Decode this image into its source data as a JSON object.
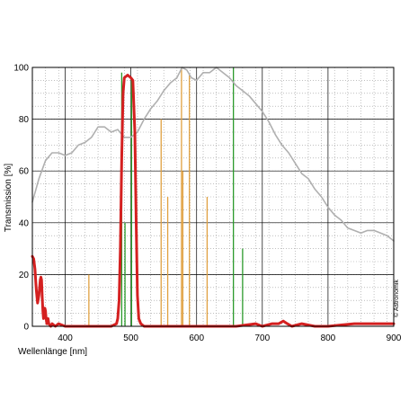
{
  "chart_data": {
    "type": "line",
    "xlabel": "Wellenlänge [nm]",
    "ylabel": "Transmission [%]",
    "xlim": [
      350,
      900
    ],
    "ylim": [
      0,
      100
    ],
    "x_ticks": [
      400,
      500,
      600,
      700,
      800,
      900
    ],
    "y_ticks": [
      0,
      20,
      40,
      60,
      80,
      100
    ],
    "grid": true,
    "watermark": "© Astronomik",
    "colors": {
      "filter": "#d42020",
      "sensor": "#b0b0b0",
      "orange_lines": "#e0a040",
      "green_lines": "#2a9a2a",
      "grid_major": "#000000",
      "grid_minor": "#9a9a9a"
    },
    "series": [
      {
        "role": "filter-transmission",
        "color": "#d42020",
        "points": [
          [
            350,
            27
          ],
          [
            352,
            26
          ],
          [
            354,
            22
          ],
          [
            356,
            14
          ],
          [
            358,
            9
          ],
          [
            360,
            12
          ],
          [
            362,
            18
          ],
          [
            363,
            19
          ],
          [
            364,
            18
          ],
          [
            365,
            11
          ],
          [
            366,
            6
          ],
          [
            367,
            3
          ],
          [
            368,
            6
          ],
          [
            369,
            7
          ],
          [
            370,
            6
          ],
          [
            371,
            3
          ],
          [
            372,
            1
          ],
          [
            373,
            2
          ],
          [
            374,
            3
          ],
          [
            375,
            1
          ],
          [
            378,
            0
          ],
          [
            380,
            1
          ],
          [
            385,
            0
          ],
          [
            390,
            1
          ],
          [
            400,
            0
          ],
          [
            420,
            0
          ],
          [
            450,
            0
          ],
          [
            470,
            0
          ],
          [
            478,
            1
          ],
          [
            480,
            3
          ],
          [
            482,
            10
          ],
          [
            484,
            30
          ],
          [
            486,
            65
          ],
          [
            488,
            90
          ],
          [
            490,
            96
          ],
          [
            495,
            97
          ],
          [
            500,
            96
          ],
          [
            503,
            95
          ],
          [
            506,
            75
          ],
          [
            508,
            40
          ],
          [
            510,
            12
          ],
          [
            512,
            3
          ],
          [
            515,
            1
          ],
          [
            520,
            0
          ],
          [
            560,
            0
          ],
          [
            600,
            0
          ],
          [
            640,
            0
          ],
          [
            660,
            0
          ],
          [
            690,
            1
          ],
          [
            700,
            0
          ],
          [
            715,
            1
          ],
          [
            725,
            1
          ],
          [
            732,
            2
          ],
          [
            738,
            1
          ],
          [
            745,
            0
          ],
          [
            760,
            1
          ],
          [
            780,
            0
          ],
          [
            800,
            0
          ],
          [
            840,
            1
          ],
          [
            870,
            1
          ],
          [
            900,
            1
          ]
        ]
      },
      {
        "role": "sensor-response",
        "color": "#b0b0b0",
        "points": [
          [
            350,
            48
          ],
          [
            360,
            57
          ],
          [
            370,
            64
          ],
          [
            380,
            67
          ],
          [
            390,
            67
          ],
          [
            400,
            66
          ],
          [
            410,
            67
          ],
          [
            420,
            70
          ],
          [
            430,
            71
          ],
          [
            440,
            73
          ],
          [
            450,
            77
          ],
          [
            460,
            77
          ],
          [
            470,
            75
          ],
          [
            480,
            76
          ],
          [
            490,
            73
          ],
          [
            500,
            73
          ],
          [
            510,
            75
          ],
          [
            520,
            80
          ],
          [
            530,
            84
          ],
          [
            540,
            87
          ],
          [
            550,
            91
          ],
          [
            560,
            94
          ],
          [
            570,
            96
          ],
          [
            578,
            100
          ],
          [
            585,
            99
          ],
          [
            592,
            96
          ],
          [
            600,
            95
          ],
          [
            610,
            98
          ],
          [
            620,
            98
          ],
          [
            630,
            100
          ],
          [
            640,
            98
          ],
          [
            650,
            96
          ],
          [
            660,
            93
          ],
          [
            670,
            91
          ],
          [
            680,
            89
          ],
          [
            690,
            86
          ],
          [
            700,
            83
          ],
          [
            710,
            79
          ],
          [
            720,
            74
          ],
          [
            730,
            70
          ],
          [
            740,
            67
          ],
          [
            750,
            63
          ],
          [
            760,
            59
          ],
          [
            770,
            57
          ],
          [
            780,
            53
          ],
          [
            790,
            50
          ],
          [
            800,
            46
          ],
          [
            810,
            43
          ],
          [
            820,
            41
          ],
          [
            830,
            38
          ],
          [
            840,
            37
          ],
          [
            850,
            36
          ],
          [
            860,
            37
          ],
          [
            870,
            37
          ],
          [
            880,
            36
          ],
          [
            890,
            35
          ],
          [
            900,
            33
          ]
        ]
      }
    ],
    "emission_lines": {
      "orange": [
        {
          "x": 436,
          "y": 20
        },
        {
          "x": 546,
          "y": 80
        },
        {
          "x": 556,
          "y": 50
        },
        {
          "x": 577,
          "y": 100
        },
        {
          "x": 579,
          "y": 60
        },
        {
          "x": 589,
          "y": 97
        },
        {
          "x": 616,
          "y": 50
        }
      ],
      "green": [
        {
          "x": 486,
          "y": 98
        },
        {
          "x": 491,
          "y": 40
        },
        {
          "x": 501,
          "y": 95
        },
        {
          "x": 656,
          "y": 100
        },
        {
          "x": 670,
          "y": 30
        }
      ]
    }
  }
}
